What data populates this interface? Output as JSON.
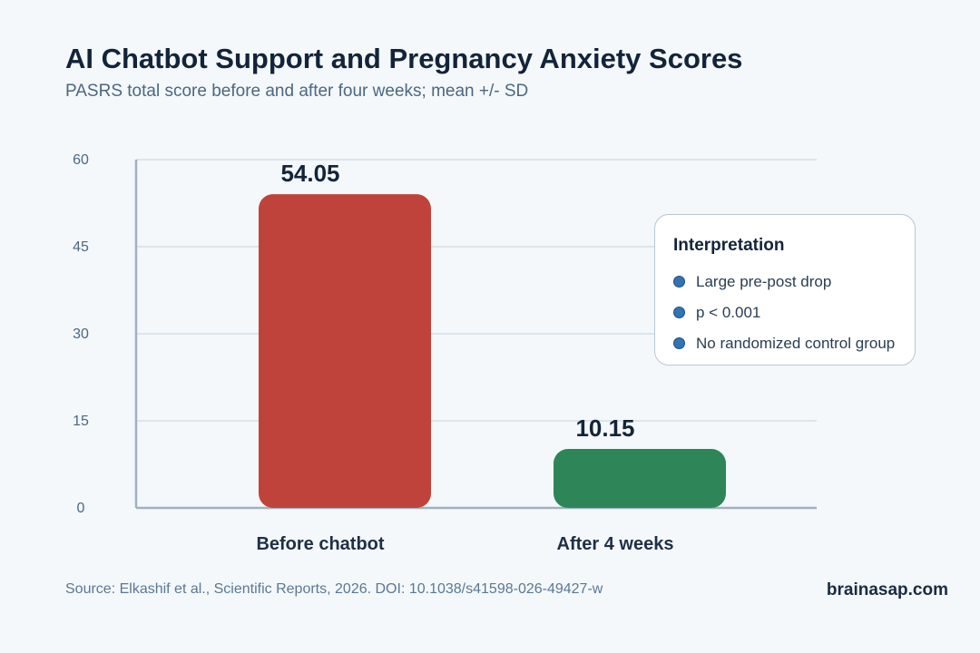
{
  "title": "AI Chatbot Support and Pregnancy Anxiety Scores",
  "subtitle": "PASRS total score before and after four weeks; mean +/- SD",
  "chart_data": {
    "type": "bar",
    "categories": [
      "Before chatbot",
      "After 4 weeks"
    ],
    "values": [
      54.05,
      10.15
    ],
    "value_labels": [
      "54.05",
      "10.15"
    ],
    "bar_colors": [
      "#c0433b",
      "#2e8658"
    ],
    "ylim": [
      0,
      60
    ],
    "yticks": [
      0,
      15,
      30,
      45,
      60
    ],
    "grid": true
  },
  "legend": {
    "title": "Interpretation",
    "items": [
      "Large pre-post drop",
      "p < 0.001",
      "No randomized control group"
    ],
    "dot_color": "#3373b4"
  },
  "source": "Source: Elkashif et al., Scientific Reports, 2026. DOI: 10.1038/s41598-026-49427-w",
  "brand": "brainasap.com"
}
